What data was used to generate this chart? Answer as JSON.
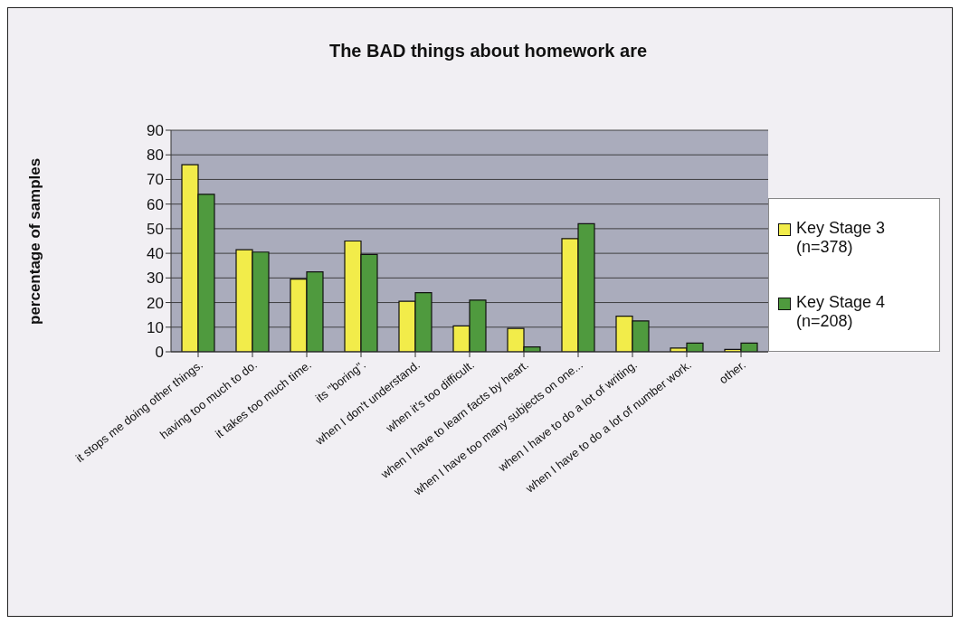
{
  "chart_data": {
    "type": "bar",
    "title": "The BAD things about homework are",
    "ylabel": "percentage of samples",
    "categories": [
      "it stops me doing other things.",
      "having too much to do.",
      "it takes too much time.",
      "its \"boring\".",
      "when I don't understand.",
      "when it's too difficult.",
      "when I have to learn facts by heart.",
      "when I have too many subjects on one...",
      "when I have to do a lot of writing.",
      "when I have to do a lot of number work.",
      "other."
    ],
    "series": [
      {
        "name": "Key Stage 3 (n=378)",
        "color": "#f2ec4a",
        "values": [
          76,
          41.5,
          29.5,
          45,
          20.5,
          10.5,
          9.5,
          46,
          14.5,
          1.5,
          1
        ]
      },
      {
        "name": "Key Stage 4 (n=208)",
        "color": "#4f9a3e",
        "values": [
          64,
          40.5,
          32.5,
          39.5,
          24,
          21,
          2,
          52,
          12.5,
          3.5,
          3.5
        ]
      }
    ],
    "ylim": [
      0,
      90
    ],
    "yticks": [
      0,
      10,
      20,
      30,
      40,
      50,
      60,
      70,
      80,
      90
    ],
    "grid": "y",
    "legend": "right"
  }
}
